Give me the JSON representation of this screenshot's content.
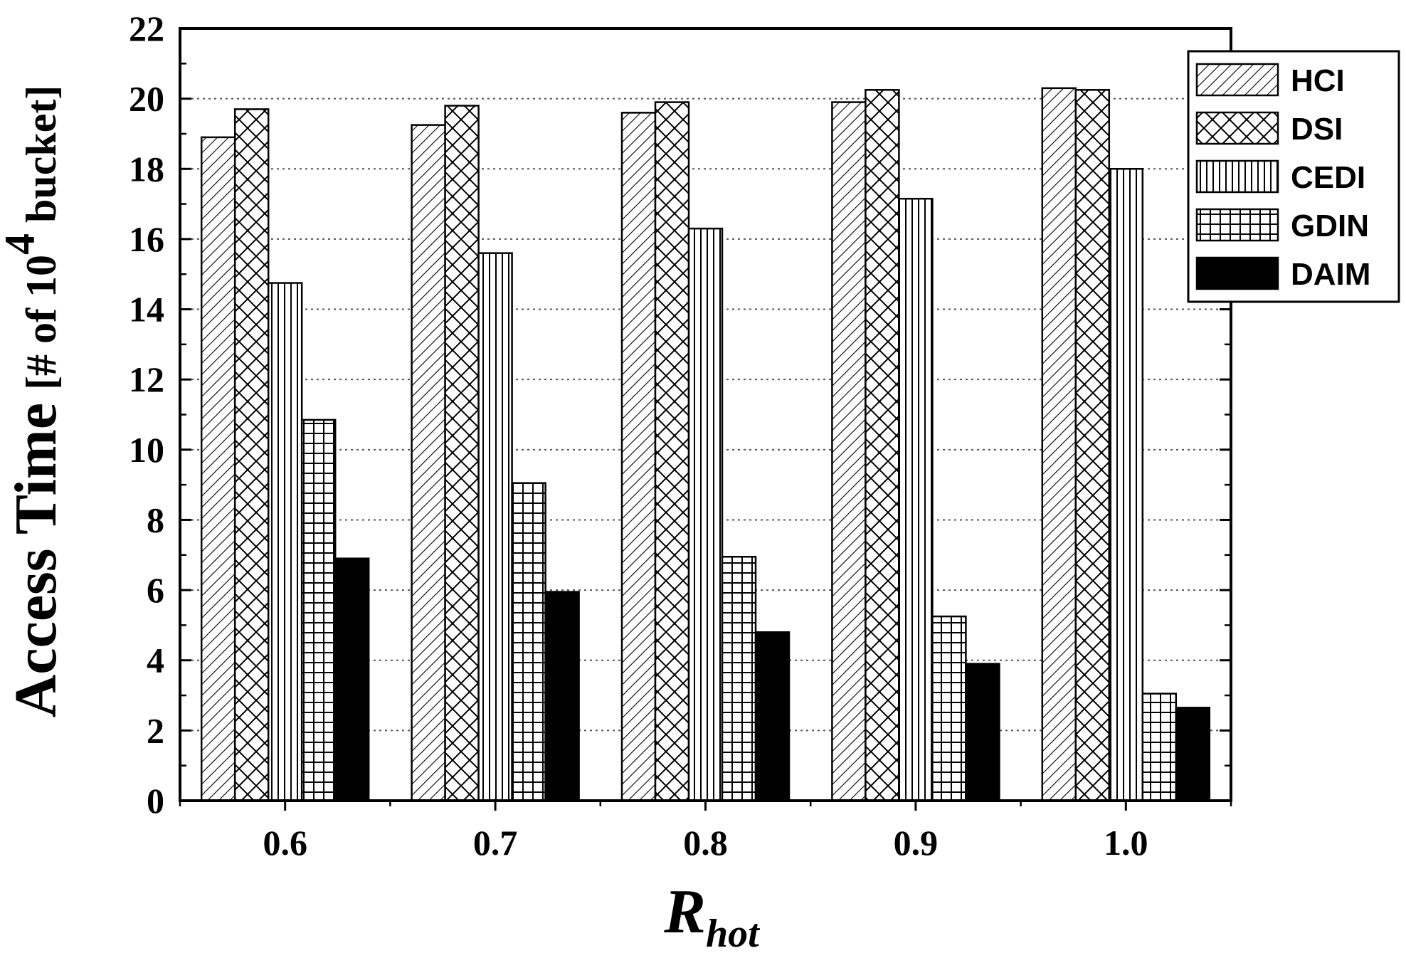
{
  "chart_data": {
    "type": "bar",
    "categories": [
      "0.6",
      "0.7",
      "0.8",
      "0.9",
      "1.0"
    ],
    "series": [
      {
        "name": "HCI",
        "pattern": "diagonal-hatch",
        "values": [
          18.9,
          19.25,
          19.6,
          19.9,
          20.3
        ]
      },
      {
        "name": "DSI",
        "pattern": "cross-hatch",
        "values": [
          19.7,
          19.8,
          19.9,
          20.25,
          20.25
        ]
      },
      {
        "name": "CEDI",
        "pattern": "vertical-lines",
        "values": [
          14.75,
          15.6,
          16.3,
          17.15,
          18.0
        ]
      },
      {
        "name": "GDIN",
        "pattern": "grid",
        "values": [
          10.85,
          9.05,
          6.95,
          5.25,
          3.05
        ]
      },
      {
        "name": "DAIM",
        "pattern": "solid-black",
        "values": [
          6.9,
          5.95,
          4.8,
          3.9,
          2.65
        ]
      }
    ],
    "ylabel_main": "Access Time",
    "ylabel_bracket": "[# of 10",
    "ylabel_superscript": "4",
    "ylabel_suffix": " bucket]",
    "xlabel_main": "R",
    "xlabel_sub": "hot",
    "ylim": [
      0,
      22
    ],
    "yticks": [
      "0",
      "2",
      "4",
      "6",
      "8",
      "10",
      "12",
      "14",
      "16",
      "18",
      "20",
      "22"
    ],
    "grid": "horizontal-dotted",
    "legend_position": "top-right"
  }
}
